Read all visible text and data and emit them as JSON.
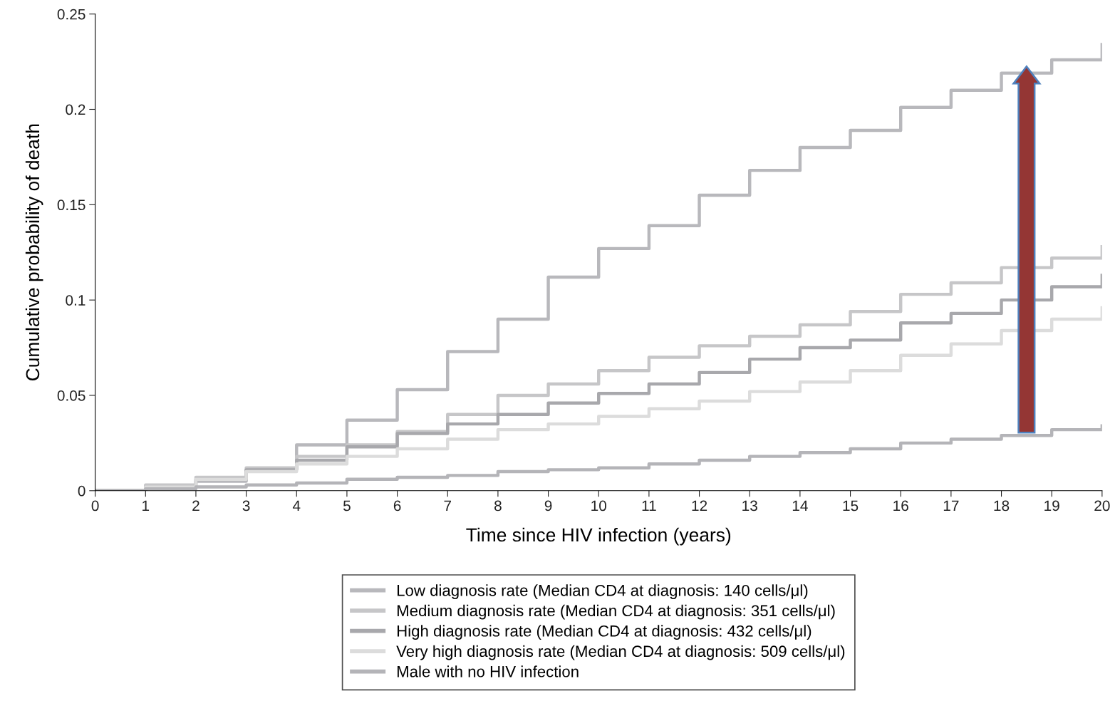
{
  "chart_data": {
    "type": "step",
    "xlabel": "Time since HIV infection (years)",
    "ylabel": "Cumulative probability of death",
    "x": [
      0,
      1,
      2,
      3,
      4,
      5,
      6,
      7,
      8,
      9,
      10,
      11,
      12,
      13,
      14,
      15,
      16,
      17,
      18,
      19,
      20
    ],
    "series": [
      {
        "name": "Low diagnosis rate (Median CD4 at diagnosis: 140 cells/μl)",
        "color": "#b8b8bc",
        "values": [
          0,
          0.002,
          0.005,
          0.011,
          0.024,
          0.037,
          0.053,
          0.073,
          0.09,
          0.112,
          0.127,
          0.139,
          0.155,
          0.168,
          0.18,
          0.189,
          0.201,
          0.21,
          0.219,
          0.226,
          0.234
        ]
      },
      {
        "name": "Medium diagnosis rate (Median CD4 at diagnosis: 351 cells/μl)",
        "color": "#c6c6c8",
        "values": [
          0,
          0.003,
          0.007,
          0.012,
          0.018,
          0.024,
          0.031,
          0.04,
          0.05,
          0.056,
          0.063,
          0.07,
          0.076,
          0.081,
          0.087,
          0.094,
          0.103,
          0.109,
          0.117,
          0.122,
          0.128
        ]
      },
      {
        "name": "High diagnosis rate (Median CD4 at diagnosis: 432 cells/μl)",
        "color": "#a8a8ac",
        "values": [
          0,
          0.002,
          0.006,
          0.011,
          0.016,
          0.023,
          0.03,
          0.035,
          0.04,
          0.046,
          0.051,
          0.056,
          0.062,
          0.069,
          0.075,
          0.079,
          0.088,
          0.093,
          0.1,
          0.107,
          0.113
        ]
      },
      {
        "name": "Very high diagnosis rate (Median CD4 at diagnosis: 509 cells/μl)",
        "color": "#dcdcdc",
        "values": [
          0,
          0.002,
          0.006,
          0.01,
          0.014,
          0.018,
          0.022,
          0.027,
          0.032,
          0.035,
          0.039,
          0.043,
          0.047,
          0.052,
          0.057,
          0.063,
          0.071,
          0.077,
          0.084,
          0.09,
          0.096
        ]
      },
      {
        "name": "Male with no HIV infection",
        "color": "#b4b4b8",
        "values": [
          0,
          0.001,
          0.002,
          0.003,
          0.004,
          0.006,
          0.007,
          0.008,
          0.01,
          0.011,
          0.012,
          0.014,
          0.016,
          0.018,
          0.02,
          0.022,
          0.025,
          0.027,
          0.029,
          0.032,
          0.034
        ]
      }
    ],
    "xlim": [
      0,
      20
    ],
    "xticks": [
      0,
      1,
      2,
      3,
      4,
      5,
      6,
      7,
      8,
      9,
      10,
      11,
      12,
      13,
      14,
      15,
      16,
      17,
      18,
      19,
      20
    ],
    "ylim": [
      0,
      0.25
    ],
    "yticks": [
      0,
      0.05,
      0.1,
      0.15,
      0.2,
      0.25
    ],
    "grid": false,
    "legend": "bottom",
    "line_style": "solid",
    "marker": "none"
  }
}
